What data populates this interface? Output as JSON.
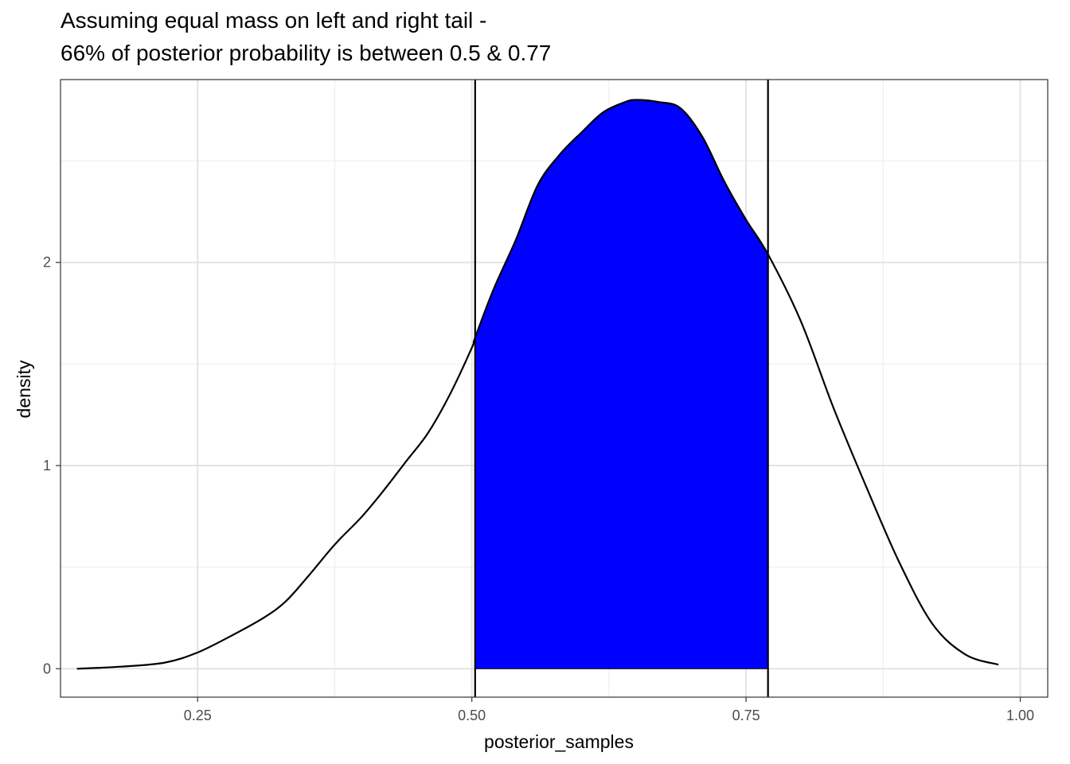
{
  "chart_data": {
    "type": "area",
    "title": "Assuming equal mass on left and right tail -",
    "subtitle": "66% of posterior probability is between 0.5 & 0.77",
    "xlabel": "posterior_samples",
    "ylabel": "density",
    "xlim": [
      0.125,
      1.025
    ],
    "ylim": [
      -0.14,
      2.9
    ],
    "x_ticks": [
      {
        "value": 0.25,
        "label": "0.25"
      },
      {
        "value": 0.5,
        "label": "0.50"
      },
      {
        "value": 0.75,
        "label": "0.75"
      },
      {
        "value": 1.0,
        "label": "1.00"
      }
    ],
    "y_ticks": [
      {
        "value": 0,
        "label": "0"
      },
      {
        "value": 1,
        "label": "1"
      },
      {
        "value": 2,
        "label": "2"
      }
    ],
    "x_minor_gridlines": [
      0.125,
      0.375,
      0.625,
      0.875
    ],
    "y_minor_gridlines": [
      0.5,
      1.5,
      2.5
    ],
    "grid": true,
    "theme": "bw",
    "interval": {
      "lower": 0.503,
      "upper": 0.77,
      "mass": 0.66,
      "fill_color": "#0000ff"
    },
    "line_color": "#000000",
    "density": {
      "x": [
        0.14,
        0.18,
        0.22,
        0.25,
        0.28,
        0.31,
        0.33,
        0.35,
        0.37,
        0.38,
        0.4,
        0.42,
        0.44,
        0.46,
        0.48,
        0.5,
        0.503,
        0.52,
        0.54,
        0.56,
        0.58,
        0.6,
        0.62,
        0.64,
        0.65,
        0.67,
        0.69,
        0.71,
        0.73,
        0.75,
        0.77,
        0.8,
        0.83,
        0.86,
        0.89,
        0.92,
        0.95,
        0.98
      ],
      "y": [
        0.0,
        0.01,
        0.03,
        0.08,
        0.16,
        0.25,
        0.33,
        0.45,
        0.58,
        0.64,
        0.75,
        0.88,
        1.02,
        1.16,
        1.35,
        1.58,
        1.63,
        1.87,
        2.11,
        2.38,
        2.53,
        2.64,
        2.74,
        2.79,
        2.8,
        2.79,
        2.76,
        2.62,
        2.4,
        2.21,
        2.04,
        1.71,
        1.28,
        0.89,
        0.52,
        0.22,
        0.07,
        0.02
      ]
    }
  }
}
